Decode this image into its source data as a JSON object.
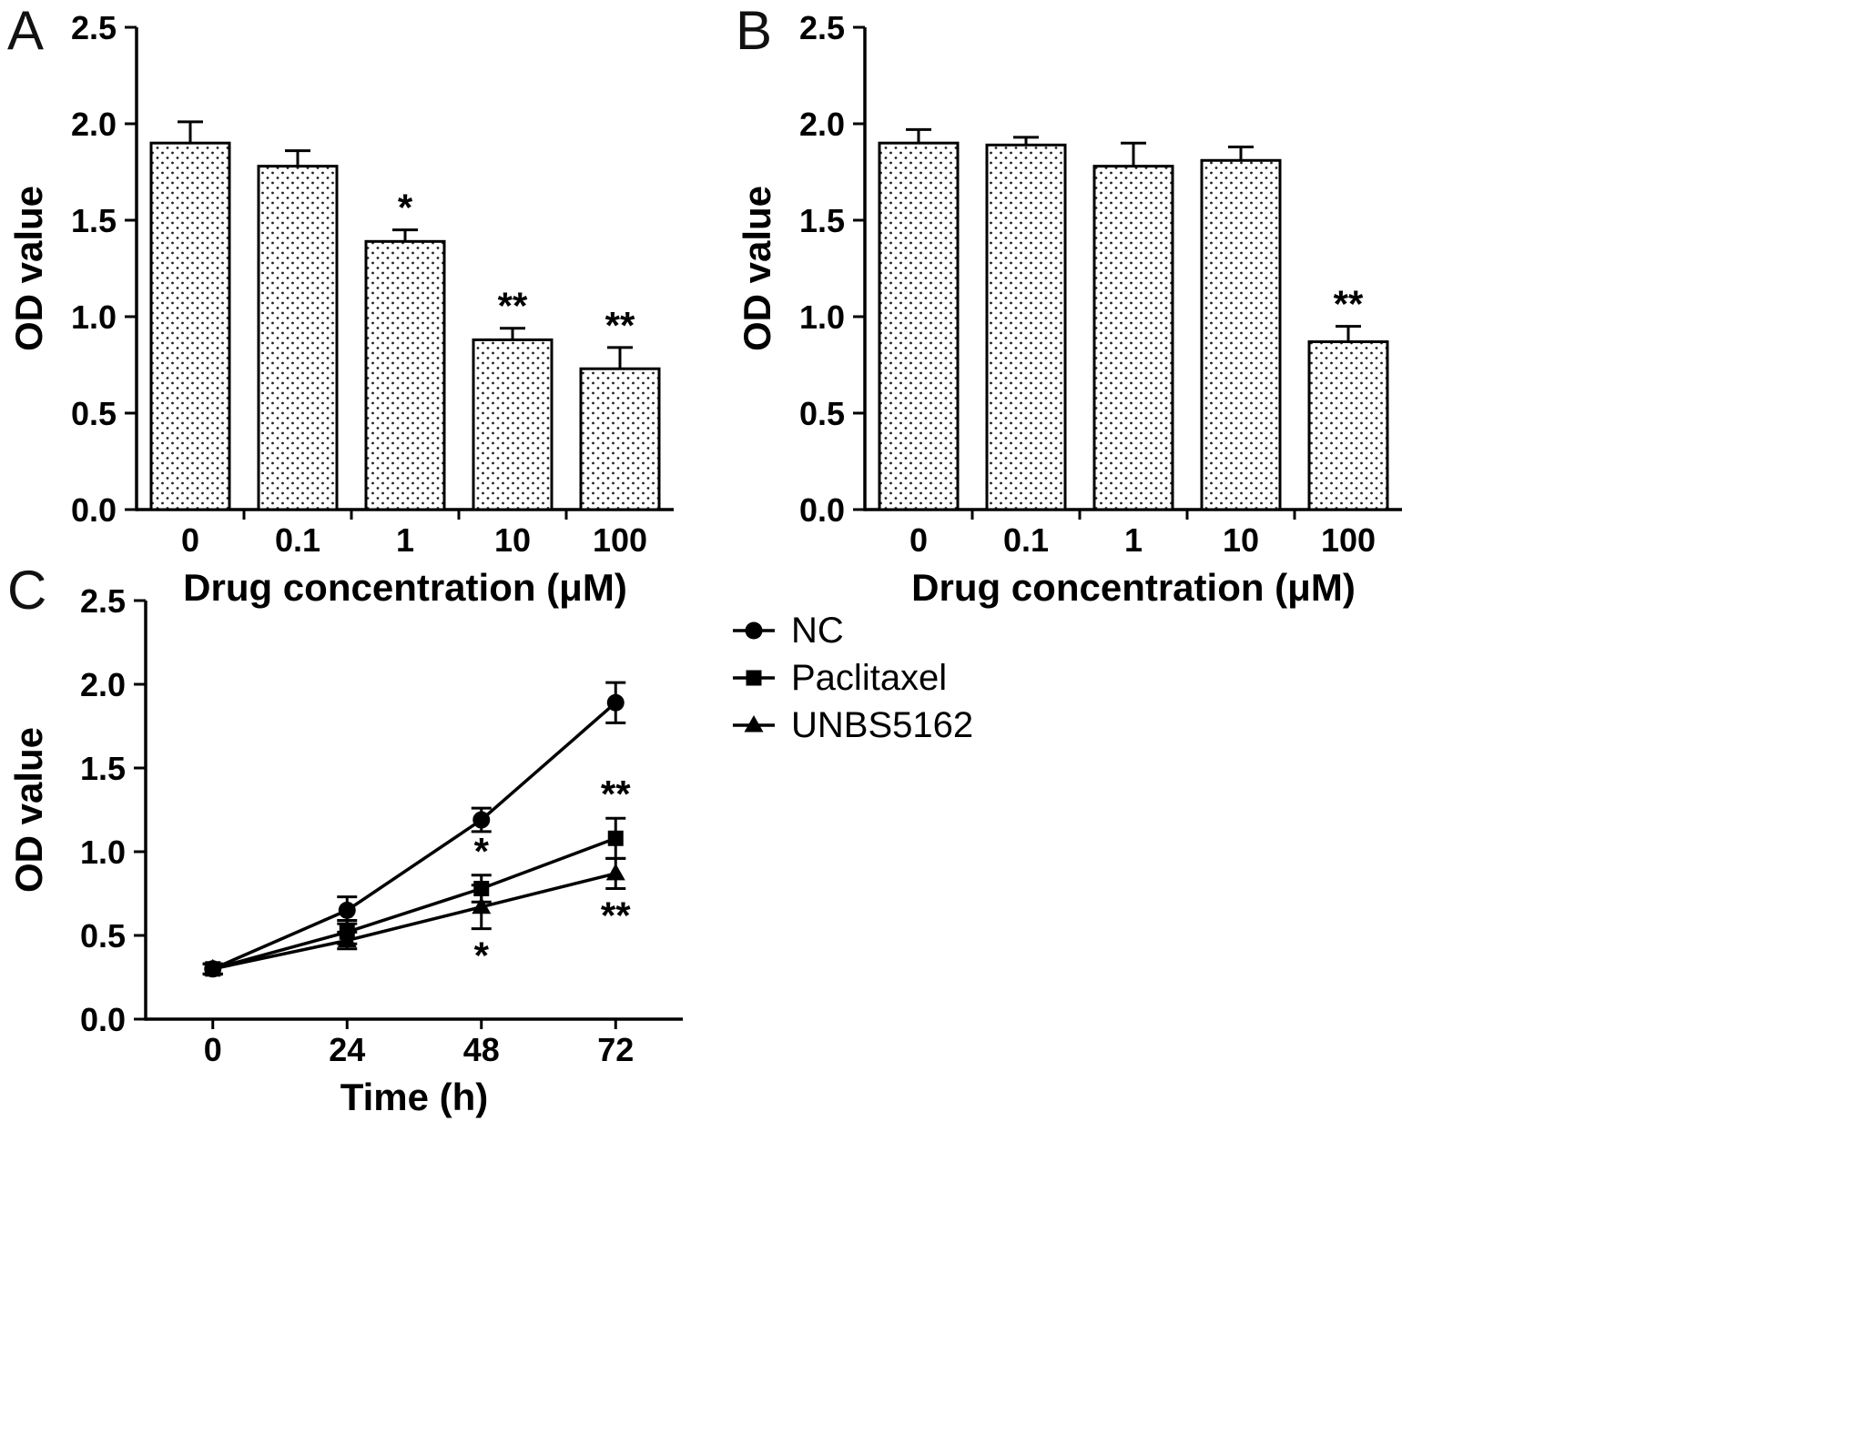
{
  "panels": {
    "a_label": "A",
    "b_label": "B",
    "c_label": "C"
  },
  "colors": {
    "foreground": "#000000",
    "background": "#ffffff"
  },
  "chart_data": [
    {
      "panel": "A",
      "type": "bar",
      "title": "",
      "xlabel": "Drug concentration (μM)",
      "ylabel": "OD value",
      "ylim": [
        0,
        2.5
      ],
      "yticks": [
        0,
        0.5,
        1,
        1.5,
        2,
        2.5
      ],
      "grid": false,
      "bar_style": "stippled-white-black-outline",
      "categories": [
        "0",
        "0.1",
        "1",
        "10",
        "100"
      ],
      "values": [
        1.9,
        1.78,
        1.39,
        0.88,
        0.73
      ],
      "errors": [
        0.11,
        0.08,
        0.06,
        0.06,
        0.11
      ],
      "annotations": [
        "",
        "",
        "*",
        "**",
        "**"
      ]
    },
    {
      "panel": "B",
      "type": "bar",
      "title": "",
      "xlabel": "Drug concentration (μM)",
      "ylabel": "OD value",
      "ylim": [
        0,
        2.5
      ],
      "yticks": [
        0,
        0.5,
        1,
        1.5,
        2,
        2.5
      ],
      "grid": false,
      "bar_style": "stippled-white-black-outline",
      "categories": [
        "0",
        "0.1",
        "1",
        "10",
        "100"
      ],
      "values": [
        1.9,
        1.89,
        1.78,
        1.81,
        0.87
      ],
      "errors": [
        0.07,
        0.04,
        0.12,
        0.07,
        0.08
      ],
      "annotations": [
        "",
        "",
        "",
        "",
        "**"
      ]
    },
    {
      "panel": "C",
      "type": "line",
      "title": "",
      "xlabel": "Time (h)",
      "ylabel": "OD value",
      "ylim": [
        0,
        2.5
      ],
      "yticks": [
        0,
        0.5,
        1,
        1.5,
        2,
        2.5
      ],
      "grid": false,
      "x": [
        0,
        24,
        48,
        72
      ],
      "x_labels": [
        "0",
        "24",
        "48",
        "72"
      ],
      "legend_position": "right",
      "series": [
        {
          "name": "NC",
          "marker": "circle",
          "values": [
            0.3,
            0.65,
            1.19,
            1.89
          ],
          "errors": [
            0.03,
            0.08,
            0.07,
            0.12
          ],
          "annotations": [
            "",
            "",
            "",
            ""
          ],
          "annotation_side": "above"
        },
        {
          "name": "Paclitaxel",
          "marker": "square",
          "values": [
            0.3,
            0.52,
            0.78,
            1.08
          ],
          "errors": [
            0.03,
            0.07,
            0.08,
            0.12
          ],
          "annotations": [
            "",
            "",
            "*",
            "**"
          ],
          "annotation_side": "above"
        },
        {
          "name": "UNBS5162",
          "marker": "triangle",
          "values": [
            0.3,
            0.47,
            0.67,
            0.87
          ],
          "errors": [
            0.03,
            0.05,
            0.13,
            0.09
          ],
          "annotations": [
            "",
            "",
            "*",
            "**"
          ],
          "annotation_side": "below"
        }
      ]
    }
  ]
}
